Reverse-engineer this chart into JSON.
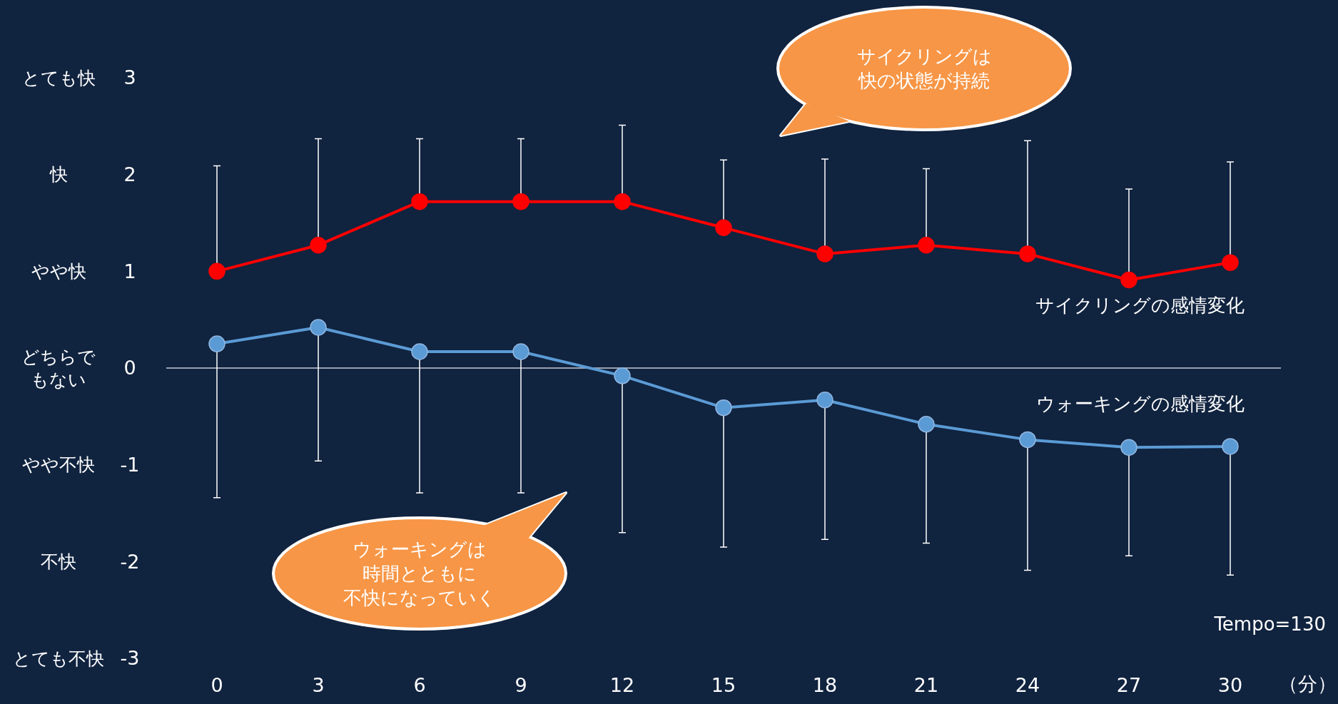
{
  "chart_data": {
    "type": "line",
    "xlabel": "（分）",
    "x": [
      0,
      3,
      6,
      9,
      12,
      15,
      18,
      21,
      24,
      27,
      30
    ],
    "xlim": [
      -1.5,
      31.5
    ],
    "xticks": [
      0,
      3,
      6,
      9,
      12,
      15,
      18,
      21,
      24,
      27,
      30
    ],
    "ylim": [
      -3,
      3
    ],
    "yticks": [
      -3,
      -2,
      -1,
      0,
      1,
      2,
      3
    ],
    "marker": "circle",
    "legend": false,
    "ref_lines": [
      {
        "axis": "y",
        "value": 0,
        "color": "#c8ccd4"
      }
    ],
    "series": [
      {
        "name": "サイクリングの感情変化",
        "color": "#ff0000",
        "values": [
          1.0,
          1.27,
          1.72,
          1.72,
          1.72,
          1.45,
          1.18,
          1.27,
          1.18,
          0.91,
          1.09
        ],
        "errors": [
          [
            1.0,
            2.09
          ],
          [
            1.27,
            2.37
          ],
          [
            1.72,
            2.37
          ],
          [
            1.72,
            2.37
          ],
          [
            1.72,
            2.51
          ],
          [
            1.45,
            2.15
          ],
          [
            1.18,
            2.16
          ],
          [
            1.27,
            2.06
          ],
          [
            1.18,
            2.35
          ],
          [
            0.91,
            1.85
          ],
          [
            1.09,
            2.13
          ]
        ]
      },
      {
        "name": "ウォーキングの感情変化",
        "color": "#5b9bd5",
        "values": [
          0.25,
          0.42,
          0.17,
          0.17,
          -0.08,
          -0.41,
          -0.33,
          -0.58,
          -0.74,
          -0.82,
          -0.81
        ],
        "errors": [
          [
            -1.34,
            0.25
          ],
          [
            -0.96,
            0.42
          ],
          [
            -1.29,
            0.17
          ],
          [
            -1.29,
            0.17
          ],
          [
            -1.7,
            -0.08
          ],
          [
            -1.85,
            -0.41
          ],
          [
            -1.77,
            -0.33
          ],
          [
            -1.81,
            -0.58
          ],
          [
            -2.09,
            -0.74
          ],
          [
            -1.94,
            -0.82
          ],
          [
            -2.14,
            -0.81
          ]
        ]
      }
    ],
    "annotations": [
      "サイクリングは快の状態が持続",
      "ウォーキングは時間とともに不快になっていく",
      "Tempo=130",
      "とても快",
      "快",
      "やや快",
      "どちらでもない",
      "やや不快",
      "不快",
      "とても不快"
    ]
  }
}
